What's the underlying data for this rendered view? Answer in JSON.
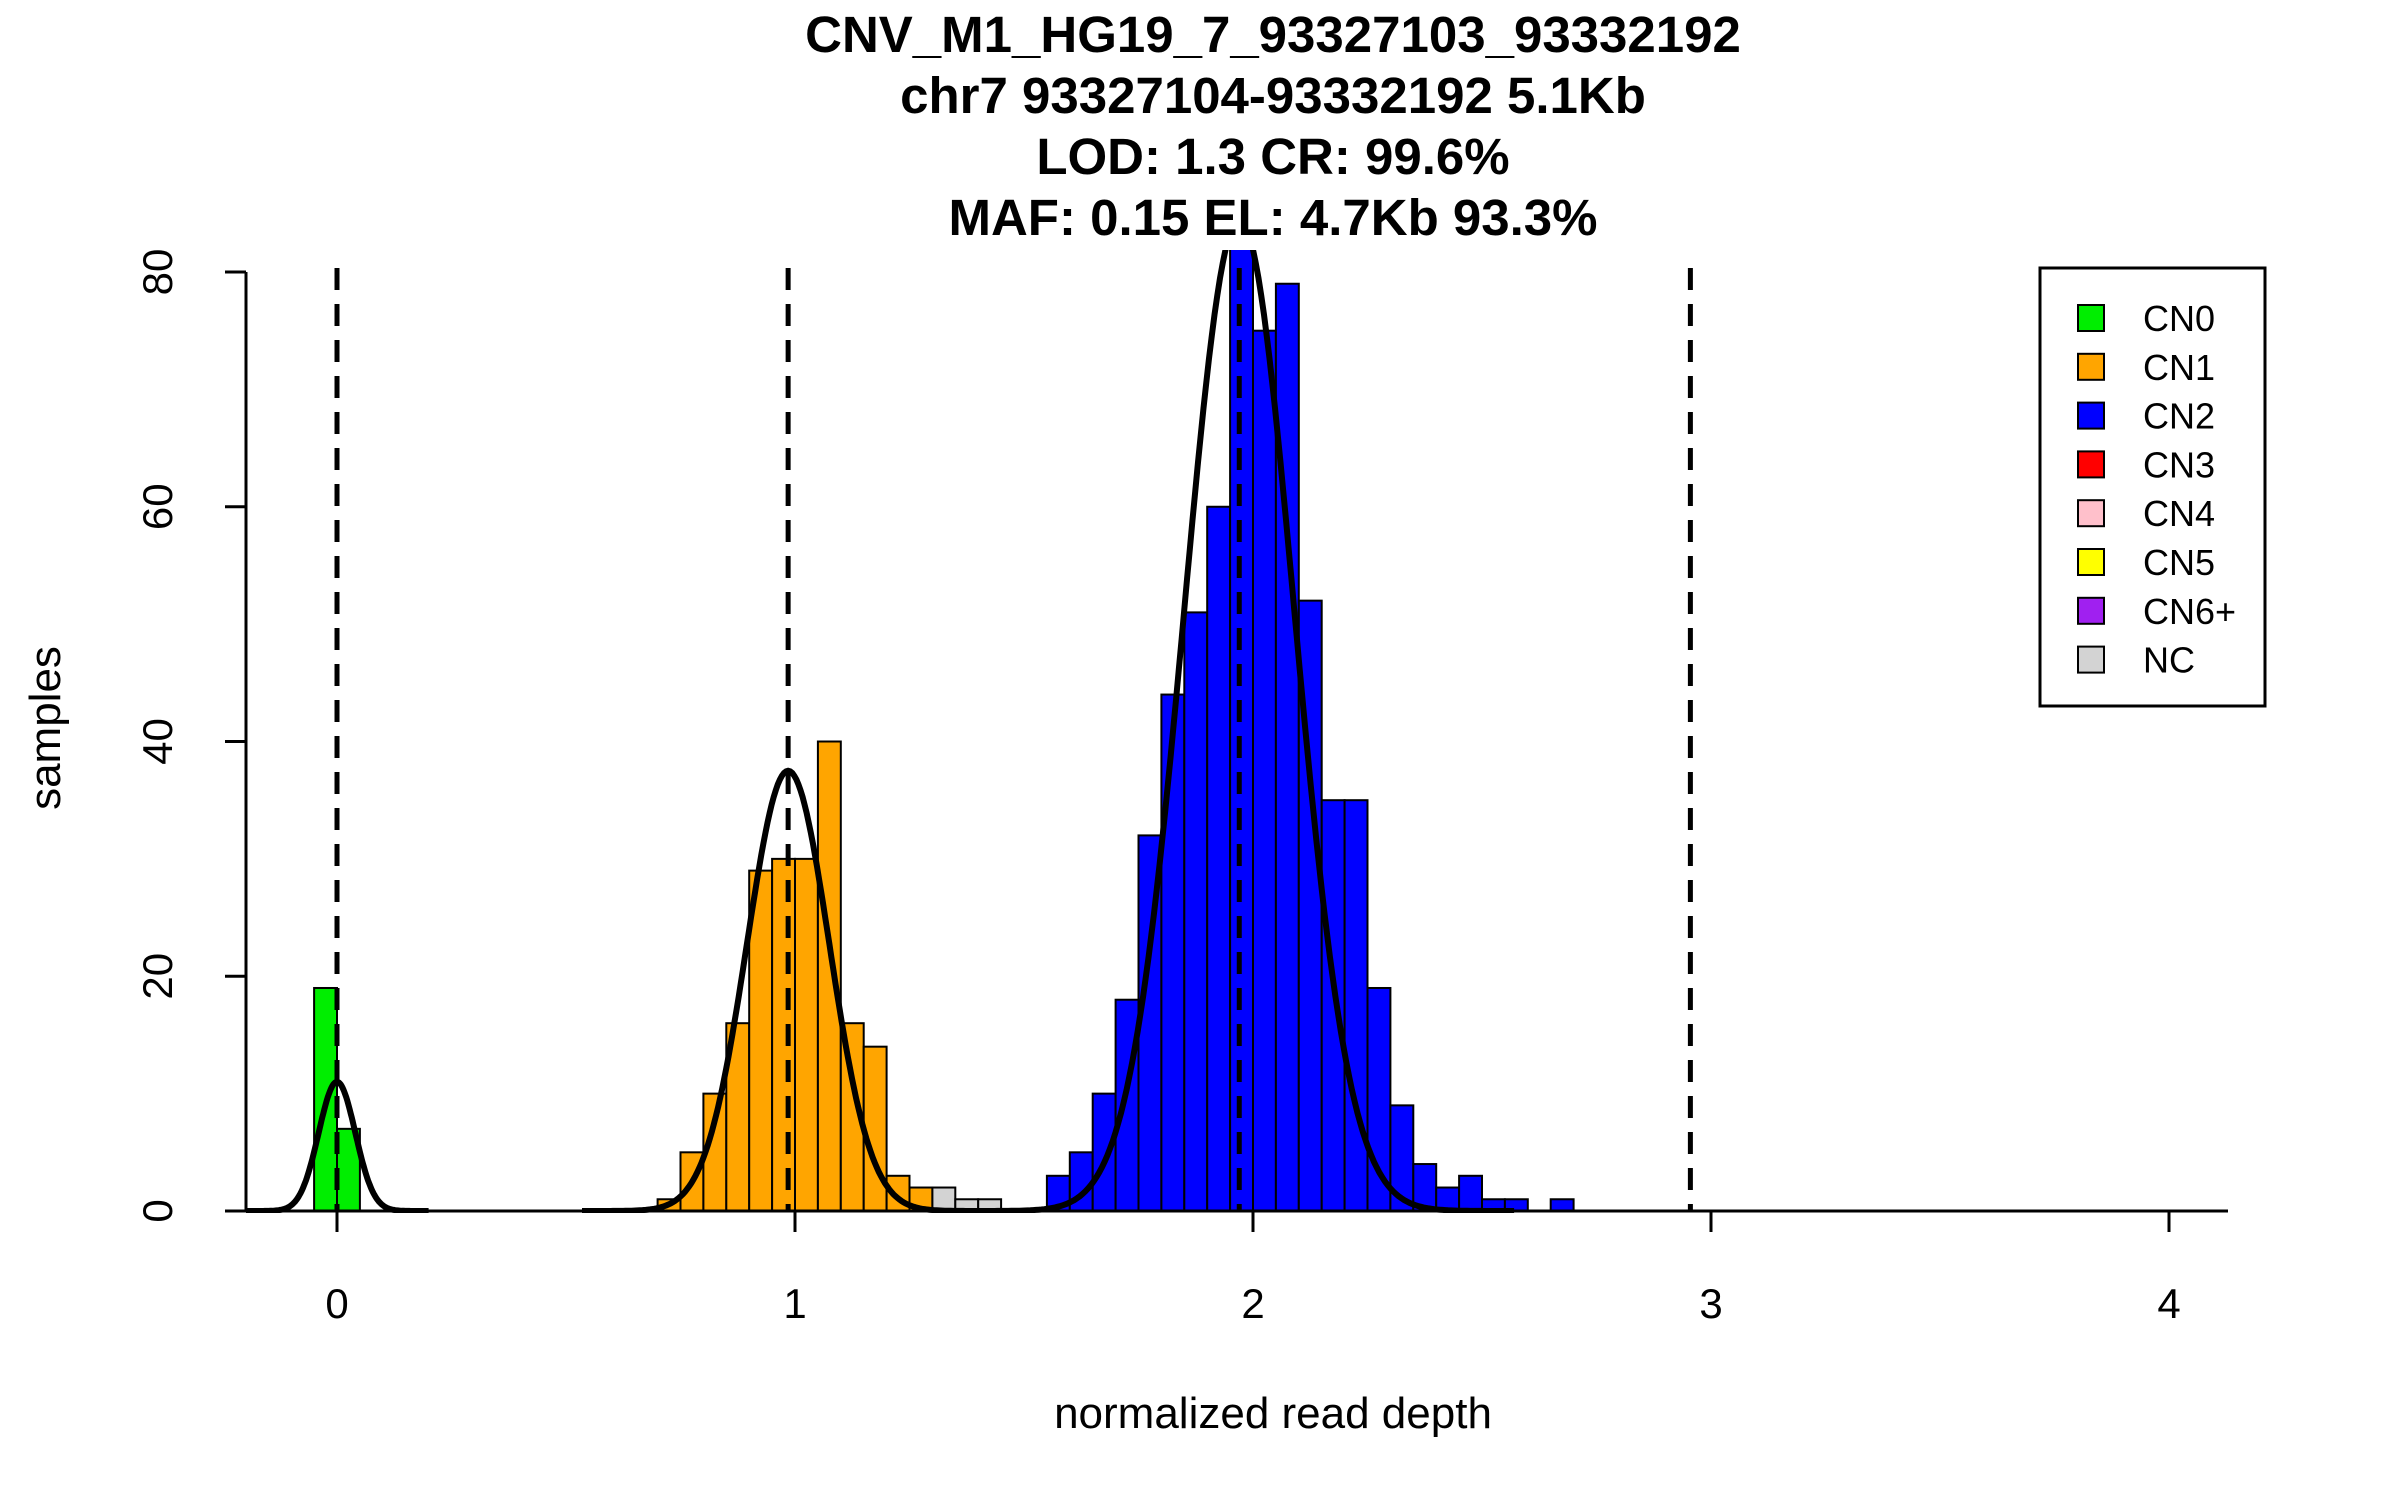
{
  "chart_data": {
    "type": "bar",
    "title_lines": [
      "CNV_M1_HG19_7_93327103_93332192",
      "chr7 93327104-93332192 5.1Kb",
      "LOD: 1.3 CR: 99.6%",
      "MAF: 0.15 EL: 4.7Kb 93.3%"
    ],
    "xlabel": "normalized read depth",
    "ylabel": "samples",
    "xlim": [
      -0.2,
      4.12
    ],
    "ylim": [
      0,
      80
    ],
    "x_ticks": [
      0,
      1,
      2,
      3,
      4
    ],
    "x_tick_labels": [
      "0",
      "1",
      "2",
      "3",
      "4"
    ],
    "y_ticks": [
      0,
      20,
      40,
      60,
      80
    ],
    "y_tick_labels": [
      "0",
      "20",
      "40",
      "60",
      "80"
    ],
    "grid": false,
    "legend_position": "top-right",
    "bin_width": 0.05,
    "colors": {
      "CN0": "#00ee00",
      "CN1": "#ffa500",
      "CN2": "#0000ff",
      "CN3": "#ff0000",
      "CN4": "#ffc0cb",
      "CN5": "#ffff00",
      "CN6+": "#a020f0",
      "NC": "#d3d3d3"
    },
    "legend": [
      "CN0",
      "CN1",
      "CN2",
      "CN3",
      "CN4",
      "CN5",
      "CN6+",
      "NC"
    ],
    "bars": [
      {
        "x": -0.025,
        "count": 19,
        "cn": "CN0"
      },
      {
        "x": 0.025,
        "count": 7,
        "cn": "CN0"
      },
      {
        "x": 0.725,
        "count": 1,
        "cn": "CN1"
      },
      {
        "x": 0.775,
        "count": 5,
        "cn": "CN1"
      },
      {
        "x": 0.825,
        "count": 10,
        "cn": "CN1"
      },
      {
        "x": 0.875,
        "count": 16,
        "cn": "CN1"
      },
      {
        "x": 0.925,
        "count": 29,
        "cn": "CN1"
      },
      {
        "x": 0.975,
        "count": 30,
        "cn": "CN1"
      },
      {
        "x": 1.025,
        "count": 30,
        "cn": "CN1"
      },
      {
        "x": 1.075,
        "count": 40,
        "cn": "CN1"
      },
      {
        "x": 1.125,
        "count": 16,
        "cn": "CN1"
      },
      {
        "x": 1.175,
        "count": 14,
        "cn": "CN1"
      },
      {
        "x": 1.225,
        "count": 3,
        "cn": "CN1"
      },
      {
        "x": 1.275,
        "count": 2,
        "cn": "CN1"
      },
      {
        "x": 1.325,
        "count": 2,
        "cn": "NC"
      },
      {
        "x": 1.375,
        "count": 1,
        "cn": "NC"
      },
      {
        "x": 1.425,
        "count": 1,
        "cn": "NC"
      },
      {
        "x": 1.575,
        "count": 3,
        "cn": "CN2"
      },
      {
        "x": 1.625,
        "count": 5,
        "cn": "CN2"
      },
      {
        "x": 1.675,
        "count": 10,
        "cn": "CN2"
      },
      {
        "x": 1.725,
        "count": 18,
        "cn": "CN2"
      },
      {
        "x": 1.775,
        "count": 32,
        "cn": "CN2"
      },
      {
        "x": 1.825,
        "count": 44,
        "cn": "CN2"
      },
      {
        "x": 1.875,
        "count": 51,
        "cn": "CN2"
      },
      {
        "x": 1.925,
        "count": 60,
        "cn": "CN2"
      },
      {
        "x": 1.975,
        "count": 82,
        "cn": "CN2"
      },
      {
        "x": 2.025,
        "count": 75,
        "cn": "CN2"
      },
      {
        "x": 2.075,
        "count": 79,
        "cn": "CN2"
      },
      {
        "x": 2.125,
        "count": 52,
        "cn": "CN2"
      },
      {
        "x": 2.175,
        "count": 35,
        "cn": "CN2"
      },
      {
        "x": 2.225,
        "count": 35,
        "cn": "CN2"
      },
      {
        "x": 2.275,
        "count": 19,
        "cn": "CN2"
      },
      {
        "x": 2.325,
        "count": 9,
        "cn": "CN2"
      },
      {
        "x": 2.375,
        "count": 4,
        "cn": "CN2"
      },
      {
        "x": 2.425,
        "count": 2,
        "cn": "CN2"
      },
      {
        "x": 2.475,
        "count": 3,
        "cn": "CN2"
      },
      {
        "x": 2.525,
        "count": 1,
        "cn": "CN2"
      },
      {
        "x": 2.575,
        "count": 1,
        "cn": "CN2"
      },
      {
        "x": 2.675,
        "count": 1,
        "cn": "CN2"
      }
    ],
    "threshold_lines": [
      0,
      0.985,
      1.97,
      2.955
    ],
    "density_curves": [
      {
        "mean": 0.0,
        "sd": 0.04,
        "peak": 11
      },
      {
        "mean": 0.985,
        "sd": 0.09,
        "peak": 37.5
      },
      {
        "mean": 1.97,
        "sd": 0.12,
        "peak": 84.5
      }
    ],
    "baseline_segment": [
      2.955,
      3.7
    ]
  }
}
